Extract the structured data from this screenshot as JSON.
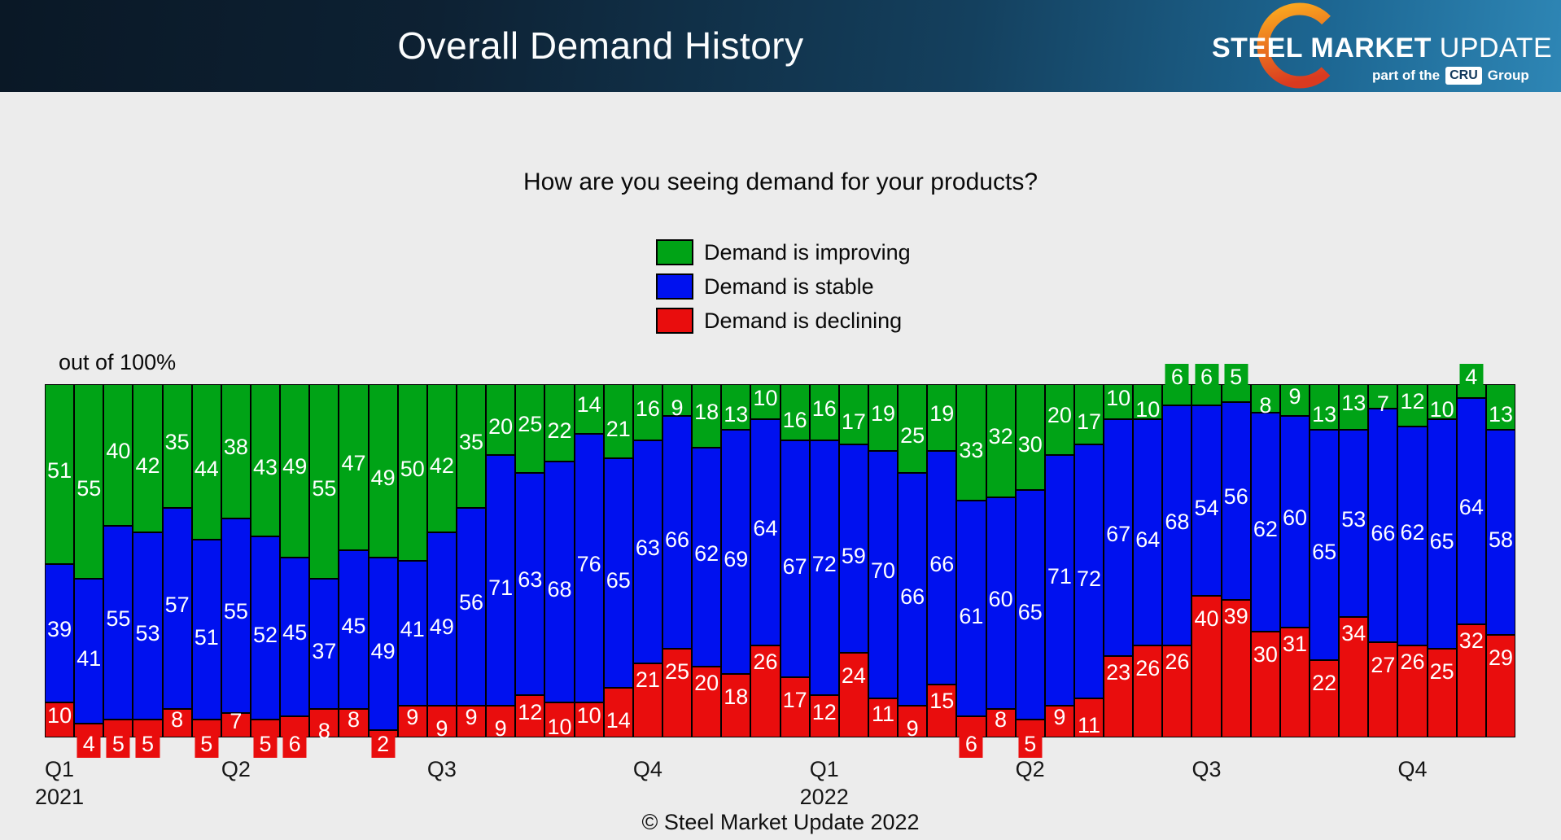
{
  "header": {
    "title": "Overall Demand History",
    "logo": {
      "brand_bold": "STEEL MARKET",
      "brand_light": "UPDATE",
      "tagline_prefix": "part of the",
      "tagline_badge": "CRU",
      "tagline_suffix": "Group"
    }
  },
  "subtitle": "How are you seeing demand for your products?",
  "axis_note": "out of 100%",
  "footer": {
    "copyright": "© Steel Market Update 2022"
  },
  "colors": {
    "improving": "#00a316",
    "stable": "#0011ef",
    "declining": "#e90d0d",
    "header_dark": "#0a1826",
    "header_light": "#2e86b5",
    "background": "#ececec",
    "logo_orange": "#f9a51f",
    "logo_red": "#d93a20"
  },
  "chart_data": {
    "type": "bar",
    "stacked": true,
    "title": "How are you seeing demand for your products?",
    "ylabel": "out of 100%",
    "ylim": [
      0,
      100
    ],
    "grid": false,
    "legend_position": "top-center",
    "series": [
      {
        "name": "Demand is improving",
        "color": "#00a316",
        "values": [
          51,
          55,
          40,
          42,
          35,
          44,
          38,
          43,
          49,
          55,
          47,
          49,
          50,
          42,
          35,
          20,
          25,
          22,
          14,
          21,
          16,
          9,
          18,
          13,
          10,
          16,
          16,
          17,
          19,
          25,
          19,
          33,
          32,
          30,
          20,
          17,
          10,
          10,
          6,
          6,
          5,
          8,
          9,
          13,
          13,
          7,
          12,
          10,
          4,
          13
        ]
      },
      {
        "name": "Demand is stable",
        "color": "#0011ef",
        "values": [
          39,
          41,
          55,
          53,
          57,
          51,
          55,
          52,
          45,
          37,
          45,
          49,
          41,
          49,
          56,
          71,
          63,
          68,
          76,
          65,
          63,
          66,
          62,
          69,
          64,
          67,
          72,
          59,
          70,
          66,
          66,
          61,
          60,
          65,
          71,
          72,
          67,
          64,
          68,
          54,
          56,
          62,
          60,
          65,
          53,
          66,
          62,
          65,
          64,
          58
        ]
      },
      {
        "name": "Demand is declining",
        "color": "#e90d0d",
        "values": [
          10,
          4,
          5,
          5,
          8,
          5,
          7,
          5,
          6,
          8,
          8,
          2,
          9,
          9,
          9,
          9,
          12,
          10,
          10,
          14,
          21,
          25,
          20,
          18,
          26,
          17,
          12,
          24,
          11,
          9,
          15,
          6,
          8,
          5,
          9,
          11,
          23,
          26,
          26,
          40,
          39,
          30,
          31,
          22,
          34,
          27,
          26,
          25,
          32,
          29
        ]
      }
    ],
    "x_axis": {
      "quarter_ticks": [
        {
          "bar": 0,
          "label": "Q1",
          "year": "2021"
        },
        {
          "bar": 6,
          "label": "Q2"
        },
        {
          "bar": 13,
          "label": "Q3"
        },
        {
          "bar": 20,
          "label": "Q4"
        },
        {
          "bar": 26,
          "label": "Q1",
          "year": "2022"
        },
        {
          "bar": 33,
          "label": "Q2"
        },
        {
          "bar": 39,
          "label": "Q3"
        },
        {
          "bar": 46,
          "label": "Q4"
        }
      ]
    },
    "callout_threshold": 6
  }
}
